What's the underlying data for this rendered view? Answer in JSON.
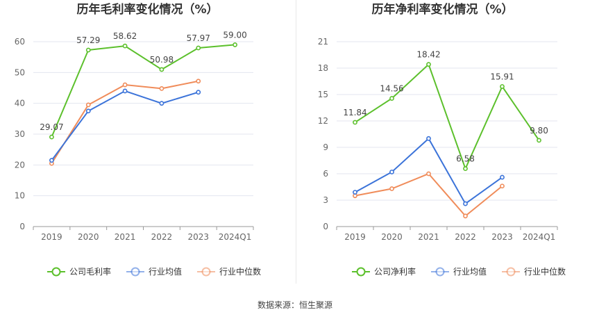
{
  "source_text": "数据来源：恒生聚源",
  "chart_data": [
    {
      "type": "line",
      "title": "历年毛利率变化情况（%）",
      "categories": [
        "2019",
        "2020",
        "2021",
        "2022",
        "2023",
        "2024Q1"
      ],
      "ylim": [
        0,
        60
      ],
      "yticks": [
        0,
        10,
        20,
        30,
        40,
        50,
        60
      ],
      "grid": true,
      "legend_position": "bottom",
      "series": [
        {
          "name": "公司毛利率",
          "color": "#5cc02c",
          "values": [
            29.07,
            57.29,
            58.62,
            50.98,
            57.97,
            59.0
          ],
          "labels": [
            "29.07",
            "57.29",
            "58.62",
            "50.98",
            "57.97",
            "59.00"
          ]
        },
        {
          "name": "行业均值",
          "color": "#3b73d9",
          "values": [
            21.5,
            37.5,
            44.0,
            40.0,
            43.6,
            null
          ]
        },
        {
          "name": "行业中位数",
          "color": "#f08c5a",
          "values": [
            20.5,
            39.5,
            46.0,
            44.8,
            47.2,
            null
          ]
        }
      ]
    },
    {
      "type": "line",
      "title": "历年净利率变化情况（%）",
      "categories": [
        "2019",
        "2020",
        "2021",
        "2022",
        "2023",
        "2024Q1"
      ],
      "ylim": [
        0,
        21
      ],
      "yticks": [
        0,
        3,
        6,
        9,
        12,
        15,
        18,
        21
      ],
      "grid": true,
      "legend_position": "bottom",
      "series": [
        {
          "name": "公司净利率",
          "color": "#5cc02c",
          "values": [
            11.84,
            14.56,
            18.42,
            6.58,
            15.91,
            9.8
          ],
          "labels": [
            "11.84",
            "14.56",
            "18.42",
            "6.58",
            "15.91",
            "9.80"
          ]
        },
        {
          "name": "行业均值",
          "color": "#3b73d9",
          "values": [
            3.9,
            6.2,
            10.0,
            2.6,
            5.6,
            null
          ]
        },
        {
          "name": "行业中位数",
          "color": "#f08c5a",
          "values": [
            3.5,
            4.3,
            6.0,
            1.2,
            4.6,
            null
          ]
        }
      ]
    }
  ]
}
